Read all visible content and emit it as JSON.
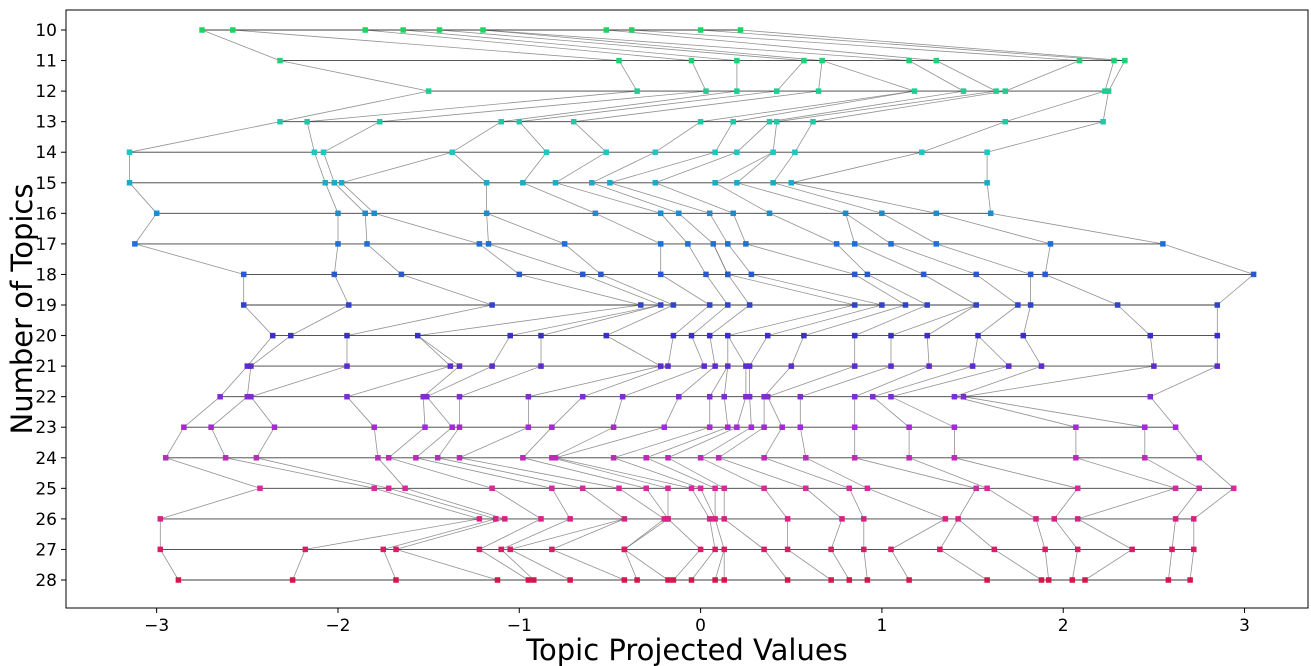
{
  "chart_data": {
    "type": "scatter",
    "xlabel": "Topic Projected Values",
    "ylabel": "Number of Topics",
    "xlim": [
      -3.5,
      3.35
    ],
    "ylim": [
      10,
      28
    ],
    "y_inverted": true,
    "x_ticks": [
      -3,
      -2,
      -1,
      0,
      1,
      2,
      3
    ],
    "x_tick_labels": [
      "−3",
      "−2",
      "−1",
      "0",
      "1",
      "2",
      "3"
    ],
    "y_ticks": [
      10,
      11,
      12,
      13,
      14,
      15,
      16,
      17,
      18,
      19,
      20,
      21,
      22,
      23,
      24,
      25,
      26,
      27,
      28
    ],
    "y_tick_labels": [
      "10",
      "11",
      "12",
      "13",
      "14",
      "15",
      "16",
      "17",
      "18",
      "19",
      "20",
      "21",
      "22",
      "23",
      "24",
      "25",
      "26",
      "27",
      "28"
    ],
    "grid": false,
    "legend": false,
    "color_map": {
      "10": "#1fd45e",
      "14": "#20c4c0",
      "17": "#1f6fd4",
      "20": "#3a2fc4",
      "23": "#a32ad6",
      "25": "#d62a9c",
      "28": "#d6154d"
    },
    "line_color": "#6e6e6e",
    "series": [
      {
        "y": 10,
        "x": [
          -2.75,
          -2.58,
          -1.85,
          -1.64,
          -1.44,
          -1.2,
          -0.52,
          -0.38,
          0.0,
          0.22
        ]
      },
      {
        "y": 11,
        "x": [
          -2.32,
          -0.45,
          -0.05,
          0.2,
          0.57,
          0.67,
          1.15,
          1.3,
          2.09,
          2.28,
          2.34
        ]
      },
      {
        "y": 12,
        "x": [
          -1.5,
          -0.35,
          0.03,
          0.2,
          0.42,
          0.65,
          1.18,
          1.45,
          1.63,
          1.68,
          2.23,
          2.25
        ]
      },
      {
        "y": 13,
        "x": [
          -2.32,
          -2.17,
          -1.77,
          -1.1,
          -1.0,
          -0.7,
          0.0,
          0.18,
          0.38,
          0.42,
          0.62,
          1.68,
          2.22
        ]
      },
      {
        "y": 14,
        "x": [
          -3.15,
          -2.13,
          -2.08,
          -1.37,
          -0.85,
          -0.52,
          -0.25,
          0.08,
          0.2,
          0.4,
          0.52,
          1.22,
          1.58
        ]
      },
      {
        "y": 15,
        "x": [
          -3.15,
          -2.07,
          -2.02,
          -1.98,
          -1.18,
          -0.98,
          -0.8,
          -0.6,
          -0.5,
          -0.25,
          0.08,
          0.2,
          0.4,
          0.5,
          1.58
        ]
      },
      {
        "y": 16,
        "x": [
          -3.0,
          -2.0,
          -1.85,
          -1.8,
          -1.18,
          -0.58,
          -0.22,
          -0.12,
          0.05,
          0.18,
          0.38,
          0.8,
          1.0,
          1.3,
          1.6
        ]
      },
      {
        "y": 17,
        "x": [
          -3.12,
          -2.0,
          -1.84,
          -1.22,
          -1.17,
          -0.75,
          -0.22,
          -0.07,
          0.07,
          0.15,
          0.25,
          0.75,
          0.85,
          1.05,
          1.3,
          1.93,
          2.55
        ]
      },
      {
        "y": 18,
        "x": [
          -2.52,
          -2.02,
          -1.65,
          -1.0,
          -0.65,
          -0.55,
          -0.22,
          0.03,
          0.15,
          0.15,
          0.28,
          0.85,
          0.92,
          1.23,
          1.52,
          1.82,
          1.9,
          3.05
        ]
      },
      {
        "y": 19,
        "x": [
          -2.52,
          -1.94,
          -1.15,
          -0.33,
          -0.22,
          -0.15,
          0.05,
          0.15,
          0.27,
          0.85,
          1.0,
          1.13,
          1.25,
          1.52,
          1.75,
          1.82,
          2.3,
          2.85
        ]
      },
      {
        "y": 20,
        "x": [
          -2.36,
          -2.26,
          -1.95,
          -1.56,
          -1.05,
          -0.88,
          -0.52,
          -0.15,
          -0.05,
          0.05,
          0.15,
          0.37,
          0.57,
          0.85,
          1.05,
          1.25,
          1.53,
          1.78,
          2.48,
          2.85
        ]
      },
      {
        "y": 21,
        "x": [
          -2.5,
          -2.48,
          -1.95,
          -1.38,
          -1.33,
          -1.15,
          -0.88,
          -0.22,
          -0.18,
          0.02,
          0.08,
          0.15,
          0.25,
          0.27,
          0.5,
          0.85,
          1.05,
          1.26,
          1.5,
          1.7,
          1.88,
          2.5,
          2.85
        ]
      },
      {
        "y": 22,
        "x": [
          -2.65,
          -2.5,
          -2.48,
          -1.95,
          -1.53,
          -1.51,
          -1.33,
          -0.95,
          -0.65,
          -0.43,
          -0.12,
          0.05,
          0.13,
          0.25,
          0.27,
          0.35,
          0.37,
          0.55,
          0.85,
          0.95,
          1.05,
          1.4,
          1.45,
          2.48
        ]
      },
      {
        "y": 23,
        "x": [
          -2.85,
          -2.7,
          -2.35,
          -1.8,
          -1.52,
          -1.37,
          -1.33,
          -0.95,
          -0.82,
          -0.48,
          -0.2,
          0.05,
          0.15,
          0.2,
          0.28,
          0.35,
          0.45,
          0.55,
          0.85,
          1.15,
          1.4,
          2.07,
          2.45,
          2.62
        ]
      },
      {
        "y": 24,
        "x": [
          -2.95,
          -2.62,
          -2.45,
          -1.78,
          -1.72,
          -1.57,
          -1.45,
          -1.33,
          -0.98,
          -0.82,
          -0.8,
          -0.48,
          -0.3,
          -0.18,
          0.0,
          0.1,
          0.35,
          0.58,
          0.85,
          1.15,
          1.4,
          2.07,
          2.45,
          2.75
        ]
      },
      {
        "y": 25,
        "x": [
          -2.43,
          -1.8,
          -1.72,
          -1.63,
          -1.15,
          -0.82,
          -0.65,
          -0.45,
          -0.3,
          -0.18,
          -0.05,
          0.0,
          0.08,
          0.13,
          0.35,
          0.58,
          0.82,
          0.92,
          1.52,
          1.58,
          2.08,
          2.62,
          2.75,
          2.94
        ]
      },
      {
        "y": 26,
        "x": [
          -2.98,
          -1.22,
          -1.13,
          -1.08,
          -0.88,
          -0.72,
          -0.42,
          -0.2,
          -0.18,
          -0.18,
          0.05,
          0.08,
          0.13,
          0.48,
          0.78,
          0.9,
          1.35,
          1.42,
          1.85,
          1.95,
          2.08,
          2.62,
          2.72
        ]
      },
      {
        "y": 27,
        "x": [
          -2.98,
          -2.18,
          -1.75,
          -1.68,
          -1.22,
          -1.1,
          -1.05,
          -0.82,
          -0.42,
          -0.42,
          0.0,
          0.08,
          0.13,
          0.35,
          0.48,
          0.72,
          0.9,
          1.05,
          1.32,
          1.62,
          1.9,
          2.08,
          2.38,
          2.6,
          2.72
        ]
      },
      {
        "y": 28,
        "x": [
          -2.88,
          -2.25,
          -1.68,
          -1.12,
          -0.95,
          -0.92,
          -0.72,
          -0.42,
          -0.35,
          -0.18,
          -0.15,
          -0.05,
          0.08,
          0.13,
          0.48,
          0.72,
          0.82,
          0.92,
          1.15,
          1.58,
          1.88,
          1.92,
          2.05,
          2.12,
          2.58,
          2.7
        ]
      }
    ]
  }
}
